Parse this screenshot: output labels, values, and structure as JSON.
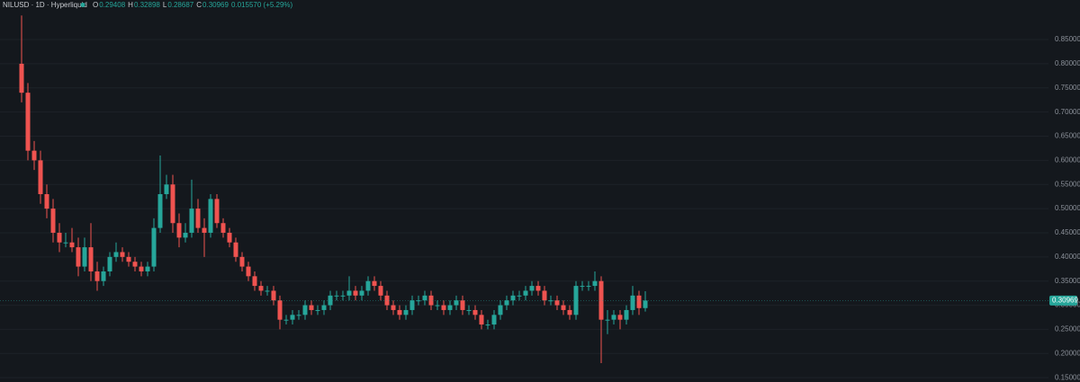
{
  "header": {
    "symbol": "NILUSD · 1D · Hyperliquid",
    "ohlc": [
      {
        "key": "O",
        "text": "0.29408"
      },
      {
        "key": "H",
        "text": "0.32898"
      },
      {
        "key": "L",
        "text": "0.28687"
      },
      {
        "key": "C",
        "text": "0.30969"
      }
    ],
    "change": "0.015570 (+5.29%)"
  },
  "chart_data": {
    "type": "candlestick",
    "up_color": "#26a69a",
    "down_color": "#ef5350",
    "grid": true,
    "ylim": [
      0.141,
      0.932
    ],
    "yticks": [
      {
        "value": 0.15,
        "label": "0.15000"
      },
      {
        "value": 0.2,
        "label": "0.20000"
      },
      {
        "value": 0.25,
        "label": "0.25000"
      },
      {
        "value": 0.3,
        "label": "0.30000"
      },
      {
        "value": 0.35,
        "label": "0.35000"
      },
      {
        "value": 0.4,
        "label": "0.40000"
      },
      {
        "value": 0.45,
        "label": "0.45000"
      },
      {
        "value": 0.5,
        "label": "0.50000"
      },
      {
        "value": 0.55,
        "label": "0.55000"
      },
      {
        "value": 0.6,
        "label": "0.60000"
      },
      {
        "value": 0.65,
        "label": "0.65000"
      },
      {
        "value": 0.7,
        "label": "0.70000"
      },
      {
        "value": 0.75,
        "label": "0.75000"
      },
      {
        "value": 0.8,
        "label": "0.80000"
      },
      {
        "value": 0.85,
        "label": "0.85000"
      }
    ],
    "last_price": 0.30969,
    "open": [
      0.8,
      0.74,
      0.62,
      0.6,
      0.53,
      0.5,
      0.45,
      0.43,
      0.43,
      0.42,
      0.38,
      0.42,
      0.37,
      0.35,
      0.37,
      0.4,
      0.41,
      0.4,
      0.39,
      0.38,
      0.37,
      0.38,
      0.46,
      0.53,
      0.55,
      0.47,
      0.44,
      0.45,
      0.5,
      0.46,
      0.45,
      0.52,
      0.47,
      0.45,
      0.43,
      0.4,
      0.38,
      0.36,
      0.34,
      0.33,
      0.33,
      0.31,
      0.27,
      0.27,
      0.28,
      0.28,
      0.3,
      0.29,
      0.29,
      0.3,
      0.32,
      0.32,
      0.32,
      0.33,
      0.32,
      0.33,
      0.35,
      0.34,
      0.32,
      0.3,
      0.29,
      0.28,
      0.29,
      0.31,
      0.31,
      0.32,
      0.3,
      0.3,
      0.29,
      0.3,
      0.31,
      0.29,
      0.29,
      0.28,
      0.26,
      0.26,
      0.28,
      0.3,
      0.31,
      0.32,
      0.32,
      0.33,
      0.34,
      0.33,
      0.31,
      0.31,
      0.3,
      0.29,
      0.28,
      0.34,
      0.34,
      0.34,
      0.35,
      0.27,
      0.27,
      0.28,
      0.27,
      0.29,
      0.32,
      0.29408
    ],
    "high": [
      0.9,
      0.76,
      0.64,
      0.62,
      0.55,
      0.52,
      0.47,
      0.45,
      0.46,
      0.44,
      0.44,
      0.47,
      0.39,
      0.38,
      0.41,
      0.43,
      0.42,
      0.41,
      0.4,
      0.39,
      0.39,
      0.48,
      0.61,
      0.57,
      0.57,
      0.49,
      0.47,
      0.56,
      0.52,
      0.48,
      0.53,
      0.53,
      0.48,
      0.46,
      0.44,
      0.41,
      0.39,
      0.37,
      0.35,
      0.34,
      0.34,
      0.32,
      0.28,
      0.29,
      0.29,
      0.31,
      0.31,
      0.3,
      0.31,
      0.33,
      0.33,
      0.33,
      0.36,
      0.34,
      0.34,
      0.36,
      0.36,
      0.35,
      0.33,
      0.31,
      0.3,
      0.3,
      0.32,
      0.32,
      0.33,
      0.33,
      0.31,
      0.31,
      0.31,
      0.32,
      0.32,
      0.3,
      0.3,
      0.29,
      0.27,
      0.29,
      0.31,
      0.32,
      0.33,
      0.33,
      0.34,
      0.35,
      0.35,
      0.34,
      0.32,
      0.32,
      0.31,
      0.3,
      0.35,
      0.35,
      0.35,
      0.37,
      0.36,
      0.29,
      0.29,
      0.29,
      0.3,
      0.34,
      0.33,
      0.32898
    ],
    "low": [
      0.72,
      0.6,
      0.58,
      0.51,
      0.48,
      0.43,
      0.41,
      0.42,
      0.41,
      0.36,
      0.37,
      0.35,
      0.33,
      0.34,
      0.36,
      0.39,
      0.39,
      0.38,
      0.37,
      0.36,
      0.36,
      0.37,
      0.45,
      0.52,
      0.45,
      0.42,
      0.43,
      0.44,
      0.45,
      0.4,
      0.44,
      0.46,
      0.44,
      0.42,
      0.39,
      0.37,
      0.35,
      0.33,
      0.32,
      0.32,
      0.3,
      0.25,
      0.26,
      0.26,
      0.27,
      0.27,
      0.28,
      0.28,
      0.28,
      0.29,
      0.31,
      0.31,
      0.31,
      0.31,
      0.31,
      0.32,
      0.33,
      0.31,
      0.29,
      0.28,
      0.27,
      0.27,
      0.28,
      0.3,
      0.3,
      0.29,
      0.29,
      0.28,
      0.28,
      0.29,
      0.28,
      0.28,
      0.27,
      0.25,
      0.25,
      0.25,
      0.27,
      0.29,
      0.3,
      0.31,
      0.31,
      0.32,
      0.32,
      0.3,
      0.3,
      0.29,
      0.28,
      0.27,
      0.27,
      0.33,
      0.33,
      0.33,
      0.18,
      0.24,
      0.26,
      0.25,
      0.26,
      0.28,
      0.28,
      0.28687
    ],
    "close": [
      0.74,
      0.62,
      0.6,
      0.53,
      0.5,
      0.45,
      0.43,
      0.43,
      0.42,
      0.38,
      0.42,
      0.37,
      0.35,
      0.37,
      0.4,
      0.41,
      0.4,
      0.39,
      0.38,
      0.37,
      0.38,
      0.46,
      0.53,
      0.55,
      0.47,
      0.44,
      0.45,
      0.5,
      0.46,
      0.45,
      0.52,
      0.47,
      0.45,
      0.43,
      0.4,
      0.38,
      0.36,
      0.34,
      0.33,
      0.33,
      0.31,
      0.27,
      0.27,
      0.28,
      0.28,
      0.3,
      0.29,
      0.29,
      0.3,
      0.32,
      0.32,
      0.32,
      0.33,
      0.32,
      0.33,
      0.35,
      0.34,
      0.32,
      0.3,
      0.29,
      0.28,
      0.29,
      0.31,
      0.31,
      0.32,
      0.3,
      0.3,
      0.29,
      0.3,
      0.31,
      0.29,
      0.29,
      0.28,
      0.26,
      0.26,
      0.28,
      0.3,
      0.31,
      0.32,
      0.32,
      0.33,
      0.34,
      0.33,
      0.31,
      0.31,
      0.3,
      0.29,
      0.28,
      0.34,
      0.34,
      0.34,
      0.35,
      0.27,
      0.27,
      0.28,
      0.27,
      0.29,
      0.32,
      0.294,
      0.30969
    ]
  }
}
